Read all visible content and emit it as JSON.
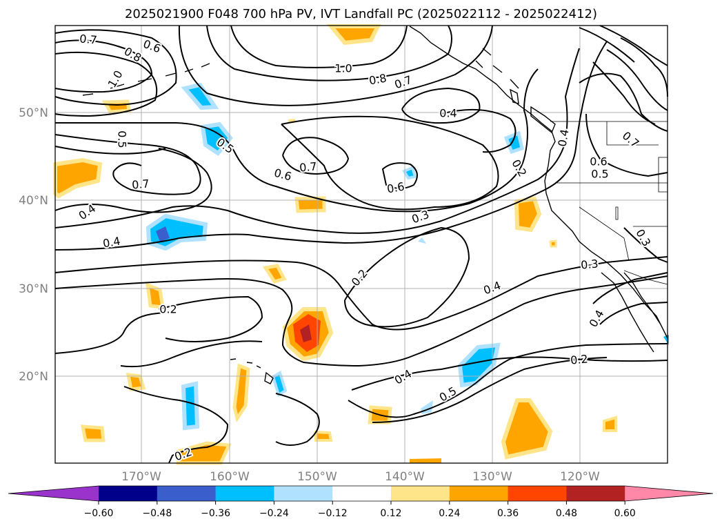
{
  "title": "2025021900 F048 700 hPa PV, IVT Landfall PC (2025022112 - 2025022412)",
  "lat_labels": [
    "50°N",
    "40°N",
    "30°N",
    "20°N"
  ],
  "lon_labels": [
    "170°W",
    "160°W",
    "150°W",
    "140°W",
    "130°W",
    "120°W"
  ],
  "colorbar": {
    "colors": [
      "#9933cc",
      "#00008b",
      "#3a5fcd",
      "#00bfff",
      "#b0e2ff",
      "#ffffff",
      "#ffe58a",
      "#ffa500",
      "#ff4500",
      "#b22222",
      "#ff87a8"
    ],
    "tick_labels": [
      "−0.60",
      "−0.48",
      "−0.36",
      "−0.24",
      "−0.12",
      "0.12",
      "0.24",
      "0.36",
      "0.48",
      "0.60"
    ]
  },
  "contour_labels": [
    "0.7",
    "0.6",
    "0.8",
    "1.0",
    "1.0",
    "0.8",
    "0.7",
    "0.4",
    "0.5",
    "0.5",
    "0.7",
    "0.6",
    "0.6",
    "0.7",
    "0.2",
    "0.4",
    "0.4",
    "0.3",
    "0.2",
    "0.4",
    "0.2",
    "0.4",
    "0.5",
    "0.2",
    "0.3",
    "0.4",
    "0.3",
    "0.6",
    "0.5",
    "0.7",
    "0.4",
    "0.2"
  ]
}
